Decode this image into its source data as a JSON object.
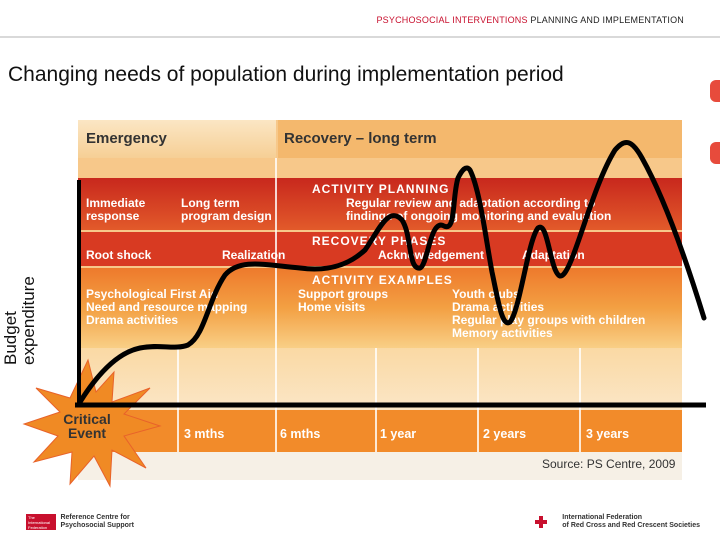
{
  "header": {
    "accent": "PSYCHOSOCIAL INTERVENTIONS",
    "rest": " PLANNING AND IMPLEMENTATION"
  },
  "title": "Changing needs of population during implementation period",
  "ylabel": {
    "line1": "Budget",
    "line2": "expenditure"
  },
  "diagram": {
    "col_emergency": "Emergency",
    "col_recovery": "Recovery – long term",
    "planning_title": "ACTIVITY PLANNING",
    "planning_left1": "Immediate",
    "planning_left2": "response",
    "planning_mid1": "Long term",
    "planning_mid2": "program design",
    "planning_right1": "Regular review and adaptation according to",
    "planning_right2": "findings of ongoing monitoring and evaluation",
    "phases_title": "RECOVERY PHASES",
    "phase1": "Root shock",
    "phase2": "Realization",
    "phase3": "Acknowledgement",
    "phase4": "Adaptation",
    "examples_title": "ACTIVITY EXAMPLES",
    "ex_left": [
      "Psychological First Aid",
      "Need and resource mapping",
      "Drama activities"
    ],
    "ex_mid": [
      "Support groups",
      "Home visits"
    ],
    "ex_right": [
      "Youth clubs",
      "Drama activities",
      "Regular play groups with children",
      "Memory activities"
    ],
    "critical1": "Critical",
    "critical2": "Event",
    "ticks": [
      "3 mths",
      "6 mths",
      "1 year",
      "2 years",
      "3 years"
    ],
    "source": "Source: PS Centre, 2009"
  },
  "footer": {
    "left_logo_text": [
      "The",
      "International",
      "Federation"
    ],
    "left_line1": "Reference Centre for",
    "left_line2": "Psychosocial Support",
    "right_line1": "International Federation",
    "right_line2": "of Red Cross and Red Crescent Societies"
  },
  "colors": {
    "accent": "#c8102e",
    "orange": "#f39a2f",
    "red": "#d62b1e",
    "light": "#f8d9a8"
  }
}
